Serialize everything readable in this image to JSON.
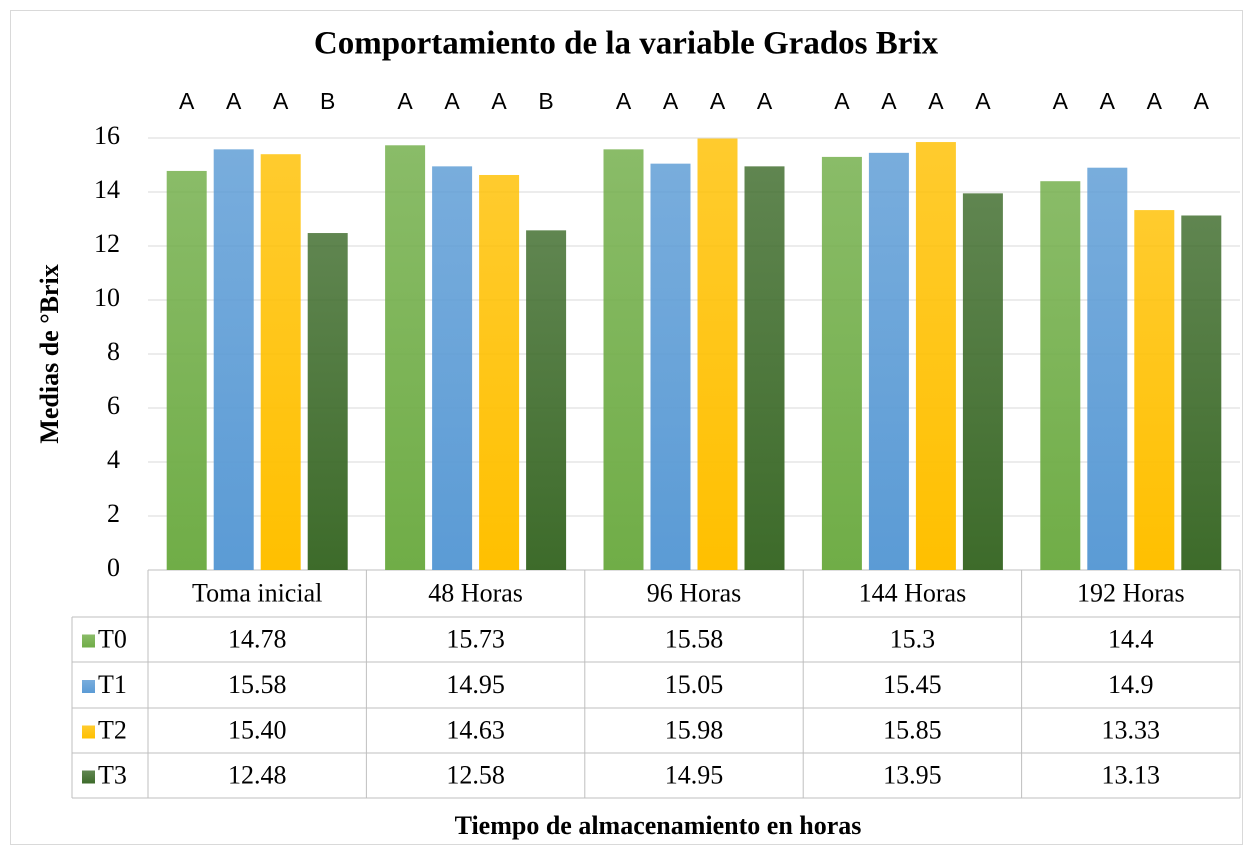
{
  "chart_data": {
    "type": "bar",
    "title": "Comportamiento de la variable Grados Brix",
    "y_label": "Medias de °Brix",
    "x_label": "Tiempo de almacenamiento en horas",
    "categories": [
      "Toma inicial",
      "48 Horas",
      "96 Horas",
      "144 Horas",
      "192 Horas"
    ],
    "series": [
      {
        "name": "T0",
        "color": "#70ad47",
        "values": [
          14.78,
          15.73,
          15.58,
          15.3,
          14.4
        ],
        "letters": [
          "A",
          "A",
          "A",
          "A",
          "A"
        ]
      },
      {
        "name": "T1",
        "color": "#5b9bd5",
        "values": [
          15.58,
          14.95,
          15.05,
          15.45,
          14.9
        ],
        "letters": [
          "A",
          "A",
          "A",
          "A",
          "A"
        ]
      },
      {
        "name": "T2",
        "color": "#ffc000",
        "values": [
          15.4,
          14.63,
          15.98,
          15.85,
          13.33
        ],
        "value_labels": [
          "15.40",
          "14.63",
          "15.98",
          "15.85",
          "13.33"
        ],
        "letters": [
          "A",
          "A",
          "A",
          "A",
          "A"
        ]
      },
      {
        "name": "T3",
        "color": "#3d6b2a",
        "values": [
          12.48,
          12.58,
          14.95,
          13.95,
          13.13
        ],
        "letters": [
          "B",
          "B",
          "A",
          "A",
          "A"
        ]
      }
    ],
    "ylim": [
      0,
      16
    ],
    "yticks": [
      0,
      2,
      4,
      6,
      8,
      10,
      12,
      14,
      16
    ],
    "grid": true,
    "data_table": true
  }
}
